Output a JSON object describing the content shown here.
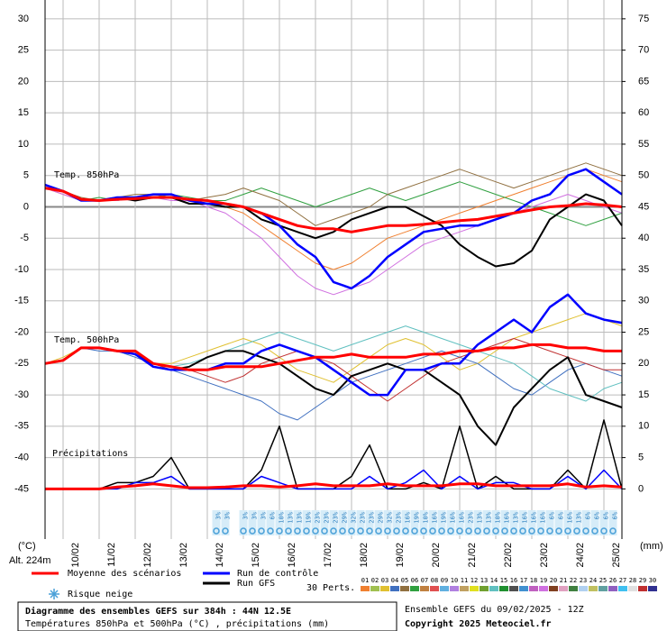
{
  "chart_data": {
    "type": "line",
    "ylabel": "(°C)",
    "y2label": "(mm)",
    "altitude": "Alt. 224m",
    "annotations": [
      "Temp. 850hPa",
      "Temp. 500hPa",
      "Précipitations"
    ],
    "grid": true,
    "x": [
      0,
      12,
      24,
      36,
      48,
      60,
      72,
      84,
      96,
      108,
      120,
      132,
      144,
      156,
      168,
      180,
      192,
      204,
      216,
      228,
      240,
      252,
      264,
      276,
      288,
      300,
      312,
      324,
      336,
      348,
      360,
      372,
      384
    ],
    "xlim": [
      0,
      384
    ],
    "xticks": [
      {
        "value": 12,
        "label": "10/02"
      },
      {
        "value": 36,
        "label": "11/02"
      },
      {
        "value": 60,
        "label": "12/02"
      },
      {
        "value": 84,
        "label": "13/02"
      },
      {
        "value": 108,
        "label": "14/02"
      },
      {
        "value": 132,
        "label": "15/02"
      },
      {
        "value": 156,
        "label": "16/02"
      },
      {
        "value": 180,
        "label": "17/02"
      },
      {
        "value": 204,
        "label": "18/02"
      },
      {
        "value": 228,
        "label": "19/02"
      },
      {
        "value": 252,
        "label": "20/02"
      },
      {
        "value": 276,
        "label": "21/02"
      },
      {
        "value": 300,
        "label": "22/02"
      },
      {
        "value": 324,
        "label": "23/02"
      },
      {
        "value": 348,
        "label": "24/02"
      },
      {
        "value": 372,
        "label": "25/02"
      }
    ],
    "ylim": [
      -53,
      33
    ],
    "yticks": [
      30,
      25,
      20,
      15,
      10,
      5,
      0,
      -5,
      -10,
      -15,
      -20,
      -25,
      -30,
      -35,
      -40,
      -45
    ],
    "y2lim": [
      -8,
      78
    ],
    "y2ticks": [
      75,
      70,
      65,
      60,
      55,
      50,
      45,
      40,
      35,
      30,
      25,
      20,
      15,
      10,
      5,
      0
    ],
    "series": [
      {
        "color": "#f08030",
        "line_width": 1,
        "values": [
          3,
          2,
          1,
          1,
          1.5,
          1.5,
          2,
          1.5,
          1,
          1,
          0,
          -1,
          -3,
          -5,
          -7,
          -9,
          -10,
          -9,
          -7,
          -5,
          -4,
          -3,
          -2,
          -1,
          0,
          1,
          2,
          3,
          4,
          5,
          6,
          5,
          4
        ]
      },
      {
        "color": "#30a040",
        "line_width": 1,
        "values": [
          3,
          2.5,
          1,
          1.5,
          1,
          1.5,
          1.5,
          2,
          1.5,
          1,
          1,
          2,
          3,
          2,
          1,
          0,
          1,
          2,
          3,
          2,
          1,
          2,
          3,
          4,
          3,
          2,
          1,
          0,
          -1,
          -2,
          -3,
          -2,
          -1
        ]
      },
      {
        "color": "#d070e0",
        "line_width": 1,
        "values": [
          3,
          2,
          1,
          1,
          1,
          1.5,
          1.5,
          1,
          1,
          0,
          -1,
          -3,
          -5,
          -8,
          -11,
          -13,
          -14,
          -13,
          -12,
          -10,
          -8,
          -6,
          -5,
          -4,
          -3,
          -2,
          -1,
          0,
          1,
          2,
          1,
          0,
          -1
        ]
      },
      {
        "color": "#907040",
        "line_width": 1,
        "values": [
          3,
          2.5,
          1.5,
          1,
          1.5,
          2,
          2,
          1.5,
          1,
          1.5,
          2,
          3,
          2,
          1,
          -1,
          -3,
          -2,
          -1,
          0,
          2,
          3,
          4,
          5,
          6,
          5,
          4,
          3,
          4,
          5,
          6,
          7,
          6,
          5
        ]
      },
      {
        "color": "#e0c030",
        "line_width": 1,
        "values": [
          -25,
          -24,
          -22.5,
          -22.5,
          -23,
          -23,
          -25,
          -25,
          -24,
          -23,
          -22,
          -21,
          -22,
          -24,
          -26,
          -27,
          -28,
          -26,
          -24,
          -22,
          -21,
          -22,
          -24,
          -26,
          -25,
          -23,
          -21,
          -20,
          -19,
          -18,
          -17,
          -18,
          -19
        ]
      },
      {
        "color": "#4070c0",
        "line_width": 1,
        "values": [
          -25,
          -24.5,
          -22.5,
          -23,
          -23,
          -24,
          -25,
          -26,
          -27,
          -28,
          -29,
          -30,
          -31,
          -33,
          -34,
          -32,
          -30,
          -28,
          -27,
          -26,
          -25,
          -24,
          -23,
          -24,
          -25,
          -27,
          -29,
          -30,
          -28,
          -26,
          -25,
          -26,
          -27
        ]
      },
      {
        "color": "#60c0c0",
        "line_width": 1,
        "values": [
          -25,
          -24.5,
          -22.5,
          -22.5,
          -23,
          -23,
          -25,
          -25.5,
          -25,
          -24,
          -23,
          -22,
          -21,
          -20,
          -21,
          -22,
          -23,
          -22,
          -21,
          -20,
          -19,
          -20,
          -21,
          -22,
          -23,
          -24,
          -25,
          -27,
          -29,
          -30,
          -31,
          -29,
          -28
        ]
      },
      {
        "color": "#c03030",
        "line_width": 1,
        "values": [
          -25,
          -24.5,
          -22.5,
          -22.5,
          -23,
          -23,
          -25,
          -26,
          -26,
          -27,
          -28,
          -27,
          -25,
          -24,
          -23,
          -24,
          -25,
          -27,
          -29,
          -31,
          -29,
          -27,
          -25,
          -24,
          -23,
          -22,
          -21,
          -22,
          -23,
          -24,
          -25,
          -26,
          -26
        ]
      },
      {
        "name": "Run GFS",
        "color": "#000000",
        "line_width": 2,
        "values": [
          3,
          2.5,
          1,
          1,
          1.5,
          1,
          1.5,
          1.5,
          0.5,
          0.5,
          0,
          0,
          -2,
          -3,
          -4,
          -5,
          -4,
          -2,
          -1,
          0,
          0,
          -1.5,
          -3,
          -6,
          -8,
          -9.5,
          -9,
          -7,
          -2,
          0,
          2,
          1,
          -3
        ]
      },
      {
        "name": "Run de contrôle",
        "color": "#0000ff",
        "line_width": 2.5,
        "values": [
          3.5,
          2.5,
          1,
          1,
          1.5,
          1.5,
          2,
          2,
          1,
          0.5,
          0.5,
          0,
          -1,
          -3,
          -6,
          -8,
          -12,
          -13,
          -11,
          -8,
          -6,
          -4,
          -3.5,
          -3,
          -3,
          -2,
          -1,
          1,
          2,
          5,
          6,
          4,
          2
        ]
      },
      {
        "name": "Moyenne des scénarios",
        "color": "#ff0000",
        "line_width": 3,
        "values": [
          3,
          2.5,
          1.2,
          1,
          1.2,
          1.3,
          1.5,
          1.5,
          1.2,
          1,
          0.5,
          0,
          -1,
          -2,
          -3,
          -3.5,
          -3.5,
          -4,
          -3.5,
          -3,
          -3,
          -2.8,
          -2.5,
          -2.2,
          -2,
          -1.5,
          -1,
          -0.5,
          0,
          0.2,
          0.5,
          0.3,
          0
        ]
      },
      {
        "color": "#000000",
        "line_width": 2,
        "values": [
          -25,
          -24.5,
          -22.5,
          -22.5,
          -23,
          -23,
          -25.5,
          -26,
          -25.5,
          -24,
          -23,
          -23,
          -24,
          -25,
          -27,
          -29,
          -30,
          -27,
          -26,
          -25,
          -26,
          -26,
          -28,
          -30,
          -35,
          -38,
          -32,
          -29,
          -26,
          -24,
          -30,
          -31,
          -32
        ]
      },
      {
        "color": "#0000ff",
        "line_width": 2.5,
        "values": [
          -25,
          -24.5,
          -22.5,
          -22.5,
          -23,
          -23.5,
          -25.5,
          -26,
          -26,
          -26,
          -25,
          -25,
          -23,
          -22,
          -23,
          -24,
          -26,
          -28,
          -30,
          -30,
          -26,
          -26,
          -25,
          -25,
          -22,
          -20,
          -18,
          -20,
          -16,
          -14,
          -17,
          -18,
          -18.5
        ]
      },
      {
        "color": "#ff0000",
        "line_width": 3,
        "values": [
          -25,
          -24.5,
          -22.5,
          -22.5,
          -23,
          -23,
          -25,
          -25.5,
          -26,
          -26,
          -25.5,
          -25.5,
          -25.5,
          -25,
          -24.5,
          -24,
          -24,
          -23.5,
          -24,
          -24,
          -24,
          -23.5,
          -23.5,
          -23,
          -23,
          -22.5,
          -22.5,
          -22,
          -22,
          -22.5,
          -22.5,
          -23,
          -23
        ]
      },
      {
        "color": "#000000",
        "line_width": 1.5,
        "axis": "y2",
        "values": [
          0,
          0,
          0,
          0,
          1,
          1,
          2,
          5,
          0,
          0,
          0,
          0,
          3,
          10,
          0,
          0,
          0,
          2,
          7,
          0,
          0,
          1,
          0,
          10,
          0,
          2,
          0,
          0,
          0,
          3,
          0,
          11,
          0
        ]
      },
      {
        "color": "#0000ff",
        "line_width": 1.5,
        "axis": "y2",
        "values": [
          0,
          0,
          0,
          0,
          0,
          1,
          1,
          2,
          0,
          0,
          0,
          0,
          2,
          1,
          0,
          0,
          0,
          0,
          2,
          0,
          1,
          3,
          0,
          2,
          0,
          1,
          1,
          0,
          0,
          2,
          0,
          3,
          0
        ]
      },
      {
        "color": "#ff0000",
        "line_width": 3,
        "axis": "y2",
        "values": [
          0,
          0,
          0,
          0,
          0.3,
          0.5,
          0.8,
          0.5,
          0.2,
          0.2,
          0.3,
          0.5,
          0.5,
          0.3,
          0.5,
          0.8,
          0.5,
          0.5,
          0.5,
          0.8,
          0.5,
          0.5,
          0.5,
          0.8,
          0.8,
          0.5,
          0.5,
          0.5,
          0.5,
          0.8,
          0.3,
          0.5,
          0.3
        ]
      }
    ],
    "snow_risk": {
      "name": "Risque neige",
      "hours": [
        114,
        120,
        132,
        138,
        144,
        150,
        156,
        162,
        168,
        174,
        180,
        186,
        192,
        198,
        204,
        210,
        216,
        222,
        228,
        234,
        240,
        246,
        252,
        258,
        264,
        270,
        276,
        282,
        288,
        294,
        300,
        306,
        312,
        318,
        324,
        330,
        336,
        342,
        348,
        354,
        360,
        366,
        372,
        378
      ],
      "values": [
        3,
        3,
        3,
        3,
        3,
        6,
        10,
        13,
        13,
        19,
        23,
        23,
        23,
        29,
        32,
        23,
        23,
        29,
        32,
        23,
        16,
        19,
        10,
        16,
        19,
        16,
        16,
        23,
        13,
        13,
        10,
        16,
        13,
        16,
        16,
        16,
        6,
        6,
        16,
        13,
        6,
        6,
        6,
        6
      ],
      "value_labels": [
        "3%",
        "3%",
        "3%",
        "3%",
        "3%",
        "6%",
        "10%",
        "13%",
        "13%",
        "19%",
        "23%",
        "23%",
        "23%",
        "29%",
        "32%",
        "23%",
        "23%",
        "29%",
        "32%",
        "23%",
        "16%",
        "19%",
        "10%",
        "16%",
        "19%",
        "16%",
        "16%",
        "23%",
        "13%",
        "13%",
        "10%",
        "16%",
        "13%",
        "16%",
        "16%",
        "16%",
        "6%",
        "6%",
        "16%",
        "13%",
        "6%",
        "6%",
        "6%",
        "6%"
      ]
    },
    "perturbations": {
      "label": "30 Perts.",
      "names": [
        "01",
        "02",
        "03",
        "04",
        "05",
        "06",
        "07",
        "08",
        "09",
        "10",
        "11",
        "12",
        "13",
        "14",
        "15",
        "16",
        "17",
        "18",
        "19",
        "20",
        "21",
        "22",
        "23",
        "24",
        "25",
        "26",
        "27",
        "28",
        "29",
        "30"
      ],
      "colors": [
        "#f08030",
        "#a0c050",
        "#e0c030",
        "#4070c0",
        "#907040",
        "#30a040",
        "#c08040",
        "#e05050",
        "#60b0e0",
        "#b080e0",
        "#c0a060",
        "#e0e020",
        "#70a030",
        "#60c0c0",
        "#209030",
        "#505050",
        "#4090d0",
        "#c060c0",
        "#d070e0",
        "#804020",
        "#e0a0c0",
        "#408040",
        "#b0d0f0",
        "#c0c060",
        "#60a0a0",
        "#9060c0",
        "#40c0f0",
        "#e0e0e0",
        "#c03030",
        "#303090"
      ]
    }
  },
  "info": {
    "title": "Diagramme des ensembles GEFS sur 384h : 44N 12.5E",
    "subtitle": "Températures 850hPa et 500hPa (°C) , précipitations (mm)",
    "run": "Ensemble GEFS du 09/02/2025 - 12Z",
    "copyright": "Copyright 2025 Meteociel.fr"
  }
}
